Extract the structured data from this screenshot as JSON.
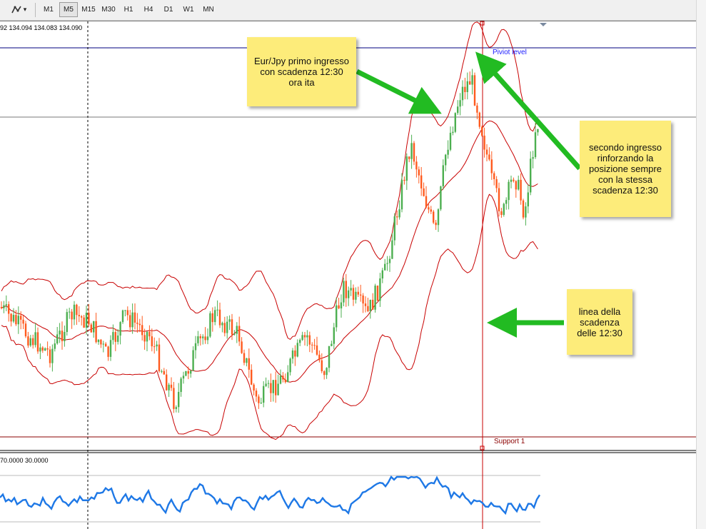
{
  "toolbar": {
    "tools_label": "▾",
    "timeframes": [
      "M1",
      "M5",
      "M15",
      "M30",
      "H1",
      "H4",
      "D1",
      "W1",
      "MN"
    ],
    "active_timeframe": "M5"
  },
  "chart": {
    "ohlc_text": "92 134.094 134.083 134.090",
    "pivot_label": "Piviot level",
    "support_label": "Support 1",
    "indicator_levels_text": "70.0000 30.0000",
    "colors": {
      "up_candle": "#4caf50",
      "down_candle": "#ff5a1e",
      "band": "#c80000",
      "pivot_line": "#000080",
      "support_line": "#8b0000",
      "indicator_line": "#1e78e6",
      "annotation_arrow": "#22bb22",
      "note_bg": "#fdec7a"
    }
  },
  "notes": {
    "first_entry": "Eur/Jpy primo ingresso con scadenza 12:30 ora ita",
    "second_entry": "secondo ingresso rinforzando la posizione sempre con la stessa scadenza 12:30",
    "expiry_line": "linea della scadenza delle 12:30"
  }
}
